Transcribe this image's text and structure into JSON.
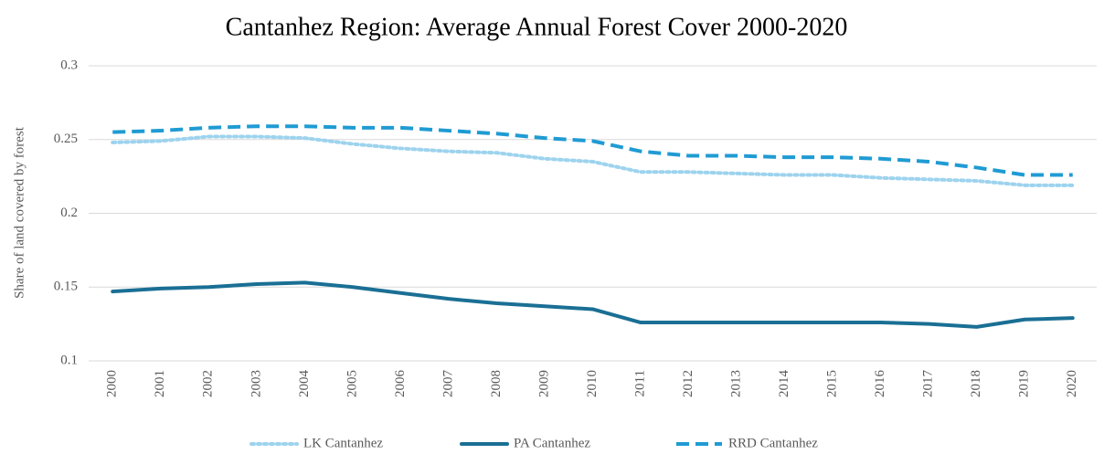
{
  "chart_data": {
    "type": "line",
    "title": "Cantanhez Region: Average Annual Forest Cover 2000-2020",
    "y_label": "Share of land covered by forest",
    "categories": [
      "2000",
      "2001",
      "2002",
      "2003",
      "2004",
      "2005",
      "2006",
      "2007",
      "2008",
      "2009",
      "2010",
      "2011",
      "2012",
      "2013",
      "2014",
      "2015",
      "2016",
      "2017",
      "2018",
      "2019",
      "2020"
    ],
    "series": [
      {
        "name": "LK Cantanhez",
        "color": "#9dd3ee",
        "style": "dotted",
        "values": [
          0.248,
          0.249,
          0.252,
          0.252,
          0.251,
          0.247,
          0.244,
          0.242,
          0.241,
          0.237,
          0.235,
          0.228,
          0.228,
          0.227,
          0.226,
          0.226,
          0.224,
          0.223,
          0.222,
          0.219,
          0.219
        ]
      },
      {
        "name": "PA Cantanhez",
        "color": "#1a6f94",
        "style": "solid",
        "values": [
          0.147,
          0.149,
          0.15,
          0.152,
          0.153,
          0.15,
          0.146,
          0.142,
          0.139,
          0.137,
          0.135,
          0.126,
          0.126,
          0.126,
          0.126,
          0.126,
          0.126,
          0.125,
          0.123,
          0.128,
          0.129
        ]
      },
      {
        "name": "RRD Cantanhez",
        "color": "#1f9bd3",
        "style": "dashed",
        "values": [
          0.255,
          0.256,
          0.258,
          0.259,
          0.259,
          0.258,
          0.258,
          0.256,
          0.254,
          0.251,
          0.249,
          0.242,
          0.239,
          0.239,
          0.238,
          0.238,
          0.237,
          0.235,
          0.231,
          0.226,
          0.226
        ]
      }
    ],
    "ylim": [
      0.1,
      0.3
    ],
    "yticks": [
      0.1,
      0.15,
      0.2,
      0.25,
      0.3
    ],
    "grid": true,
    "legend": "bottom"
  }
}
